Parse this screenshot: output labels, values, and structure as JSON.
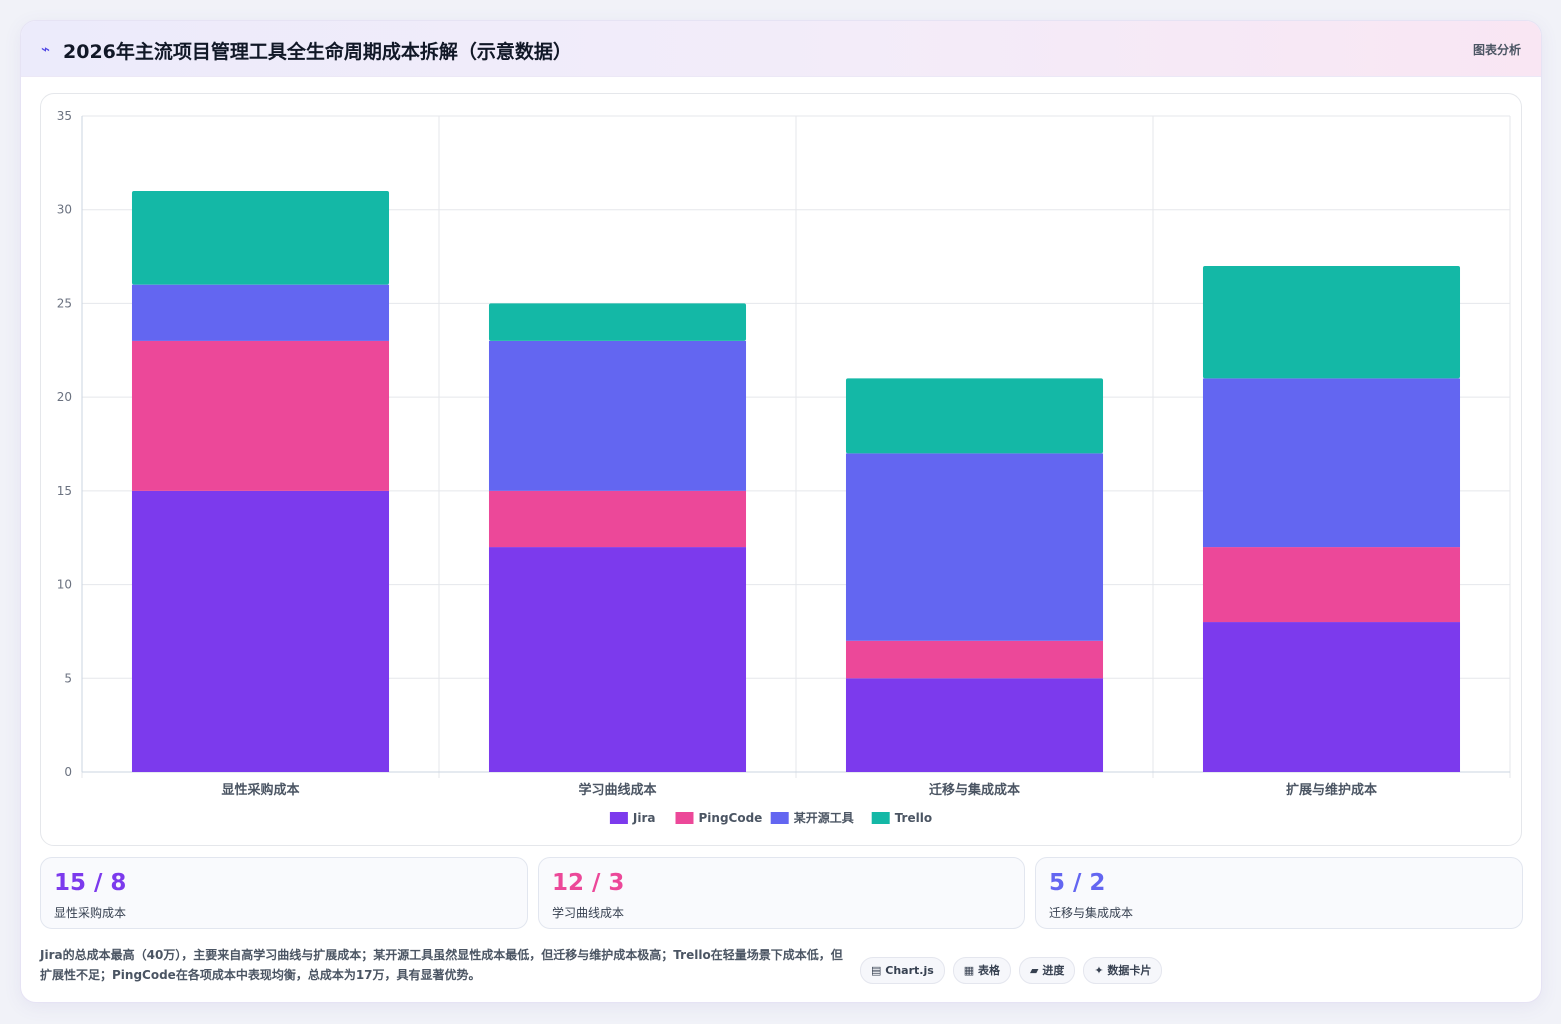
{
  "header": {
    "icon": "chart-line-icon",
    "title": "2026年主流项目管理工具全生命周期成本拆解（示意数据）",
    "right_label": "图表分析"
  },
  "colors": {
    "Jira": "#7c3aed",
    "PingCode": "#ec4899",
    "某开源工具": "#6366f1",
    "Trello": "#14b8a6"
  },
  "chart_data": {
    "type": "bar",
    "stacked": true,
    "categories": [
      "显性采购成本",
      "学习曲线成本",
      "迁移与集成成本",
      "扩展与维护成本"
    ],
    "series": [
      {
        "name": "Jira",
        "values": [
          15,
          12,
          5,
          8
        ],
        "color": "#7c3aed"
      },
      {
        "name": "PingCode",
        "values": [
          8,
          3,
          2,
          4
        ],
        "color": "#ec4899"
      },
      {
        "name": "某开源工具",
        "values": [
          3,
          8,
          10,
          9
        ],
        "color": "#6366f1"
      },
      {
        "name": "Trello",
        "values": [
          5,
          2,
          4,
          6
        ],
        "color": "#14b8a6"
      }
    ],
    "ylim": [
      0,
      35
    ],
    "yticks": [
      0,
      5,
      10,
      15,
      20,
      25,
      30,
      35
    ],
    "grid": true,
    "legend": "bottom",
    "title": "",
    "xlabel": "",
    "ylabel": ""
  },
  "stats": [
    {
      "value": "15 / 8",
      "label": "显性采购成本",
      "color": "#7c3aed"
    },
    {
      "value": "12 / 3",
      "label": "学习曲线成本",
      "color": "#ec4899"
    },
    {
      "value": "5 / 2",
      "label": "迁移与集成成本",
      "color": "#6366f1"
    }
  ],
  "summary": "Jira的总成本最高（40万），主要来自高学习曲线与扩展成本；某开源工具虽然显性成本最低，但迁移与维护成本极高；Trello在轻量场景下成本低，但扩展性不足；PingCode在各项成本中表现均衡，总成本为17万，具有显著优势。",
  "tags": [
    {
      "icon": "▤",
      "label": "Chart.js"
    },
    {
      "icon": "▦",
      "label": "表格"
    },
    {
      "icon": "▰",
      "label": "进度"
    },
    {
      "icon": "✦",
      "label": "数据卡片"
    }
  ]
}
